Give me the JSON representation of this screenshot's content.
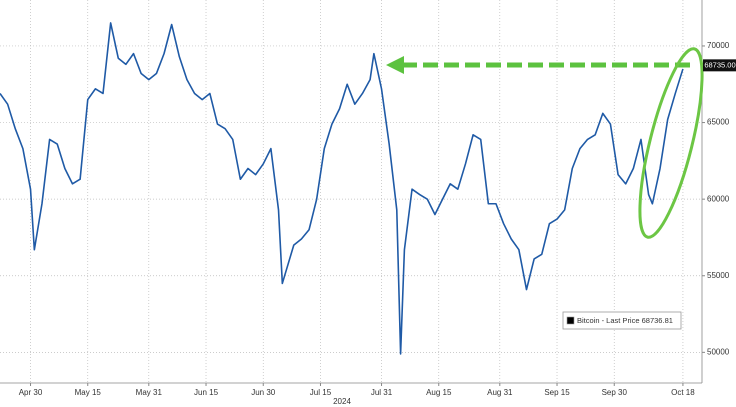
{
  "chart_data": {
    "type": "line",
    "x_year_label": "2024",
    "series": [
      {
        "name": "Bitcoin - Last Price",
        "color": "#1f5aa6",
        "x": [
          "2024-04-22",
          "2024-04-24",
          "2024-04-26",
          "2024-04-28",
          "2024-04-30",
          "2024-05-01",
          "2024-05-03",
          "2024-05-05",
          "2024-05-07",
          "2024-05-09",
          "2024-05-11",
          "2024-05-13",
          "2024-05-15",
          "2024-05-17",
          "2024-05-19",
          "2024-05-21",
          "2024-05-23",
          "2024-05-25",
          "2024-05-27",
          "2024-05-29",
          "2024-05-31",
          "2024-06-02",
          "2024-06-04",
          "2024-06-06",
          "2024-06-08",
          "2024-06-10",
          "2024-06-12",
          "2024-06-14",
          "2024-06-16",
          "2024-06-18",
          "2024-06-20",
          "2024-06-22",
          "2024-06-24",
          "2024-06-26",
          "2024-06-28",
          "2024-06-30",
          "2024-07-02",
          "2024-07-04",
          "2024-07-05",
          "2024-07-08",
          "2024-07-10",
          "2024-07-12",
          "2024-07-14",
          "2024-07-16",
          "2024-07-18",
          "2024-07-20",
          "2024-07-22",
          "2024-07-24",
          "2024-07-26",
          "2024-07-28",
          "2024-07-29",
          "2024-07-31",
          "2024-08-02",
          "2024-08-04",
          "2024-08-05",
          "2024-08-06",
          "2024-08-08",
          "2024-08-10",
          "2024-08-12",
          "2024-08-14",
          "2024-08-16",
          "2024-08-18",
          "2024-08-20",
          "2024-08-22",
          "2024-08-24",
          "2024-08-26",
          "2024-08-28",
          "2024-08-30",
          "2024-09-01",
          "2024-09-03",
          "2024-09-05",
          "2024-09-07",
          "2024-09-09",
          "2024-09-11",
          "2024-09-13",
          "2024-09-15",
          "2024-09-17",
          "2024-09-19",
          "2024-09-21",
          "2024-09-23",
          "2024-09-25",
          "2024-09-27",
          "2024-09-29",
          "2024-10-01",
          "2024-10-03",
          "2024-10-05",
          "2024-10-07",
          "2024-10-09",
          "2024-10-10",
          "2024-10-12",
          "2024-10-14",
          "2024-10-16",
          "2024-10-18"
        ],
        "values": [
          66900,
          66200,
          64600,
          63300,
          60650,
          56700,
          59700,
          63900,
          63600,
          62000,
          61000,
          61300,
          66500,
          67200,
          66900,
          71500,
          69200,
          68800,
          69500,
          68200,
          67800,
          68200,
          69500,
          71400,
          69300,
          67800,
          66900,
          66500,
          66900,
          64900,
          64600,
          63900,
          61300,
          62000,
          61600,
          62300,
          63300,
          59300,
          54500,
          57000,
          57400,
          58000,
          60000,
          63300,
          64900,
          65900,
          67500,
          66200,
          66900,
          67800,
          69500,
          67200,
          63600,
          59300,
          49900,
          56700,
          60650,
          60300,
          60000,
          59000,
          60000,
          61000,
          60650,
          62300,
          64200,
          63900,
          59700,
          59700,
          58400,
          57400,
          56700,
          54100,
          56100,
          56400,
          58400,
          58700,
          59300,
          62000,
          63300,
          63900,
          64200,
          65600,
          64900,
          61600,
          61000,
          62000,
          63900,
          60300,
          59700,
          62000,
          65200,
          66900,
          68500
        ]
      }
    ],
    "legend_value": 68736.81,
    "last_price": {
      "value": 68735,
      "label": "68735.00"
    },
    "xlim": [
      "2024-04-22",
      "2024-10-23"
    ],
    "xticks": [
      {
        "value": "2024-04-30",
        "label": "Apr 30"
      },
      {
        "value": "2024-05-15",
        "label": "May 15"
      },
      {
        "value": "2024-05-31",
        "label": "May 31"
      },
      {
        "value": "2024-06-15",
        "label": "Jun 15"
      },
      {
        "value": "2024-06-30",
        "label": "Jun 30"
      },
      {
        "value": "2024-07-15",
        "label": "Jul 15"
      },
      {
        "value": "2024-07-31",
        "label": "Jul 31"
      },
      {
        "value": "2024-08-15",
        "label": "Aug 15"
      },
      {
        "value": "2024-08-31",
        "label": "Aug 31"
      },
      {
        "value": "2024-09-15",
        "label": "Sep 15"
      },
      {
        "value": "2024-09-30",
        "label": "Sep 30"
      },
      {
        "value": "2024-10-18",
        "label": "Oct 18"
      }
    ],
    "ylim": [
      48000,
      73000
    ],
    "yticks": [
      50000,
      55000,
      60000,
      65000,
      70000
    ],
    "grid": true
  }
}
